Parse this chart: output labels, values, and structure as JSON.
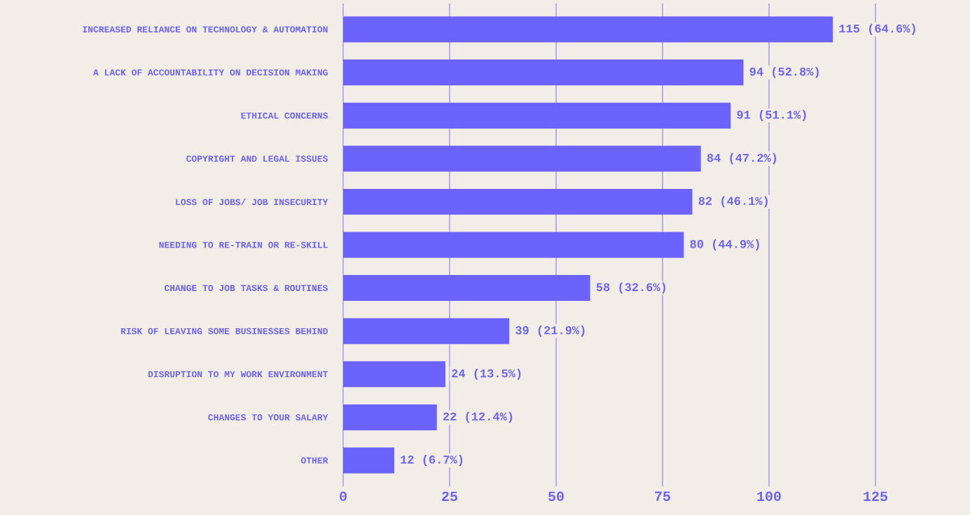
{
  "chart_data": {
    "type": "bar",
    "orientation": "horizontal",
    "categories": [
      "INCREASED RELIANCE ON TECHNOLOGY & AUTOMATION",
      "A LACK OF ACCOUNTABILITY ON DECISION MAKING",
      "ETHICAL CONCERNS",
      "COPYRIGHT AND LEGAL ISSUES",
      "LOSS OF JOBS/ JOB INSECURITY",
      "NEEDING TO RE-TRAIN OR RE-SKILL",
      "CHANGE TO JOB TASKS & ROUTINES",
      "RISK OF LEAVING SOME BUSINESSES BEHIND",
      "DISRUPTION TO MY WORK ENVIRONMENT",
      "CHANGES TO YOUR SALARY",
      "OTHER"
    ],
    "values": [
      115,
      94,
      91,
      84,
      82,
      80,
      58,
      39,
      24,
      22,
      12
    ],
    "value_labels": [
      "115 (64.6%)",
      "94 (52.8%)",
      "91 (51.1%)",
      "84 (47.2%)",
      "82 (46.1%)",
      "80 (44.9%)",
      "58 (32.6%)",
      "39 (21.9%)",
      "24 (13.5%)",
      "22 (12.4%)",
      "12 (6.7%)"
    ],
    "color": "#6c63ff",
    "xlim": [
      0,
      125
    ],
    "xticks": [
      0,
      25,
      50,
      75,
      100,
      125
    ],
    "grid": "x"
  }
}
